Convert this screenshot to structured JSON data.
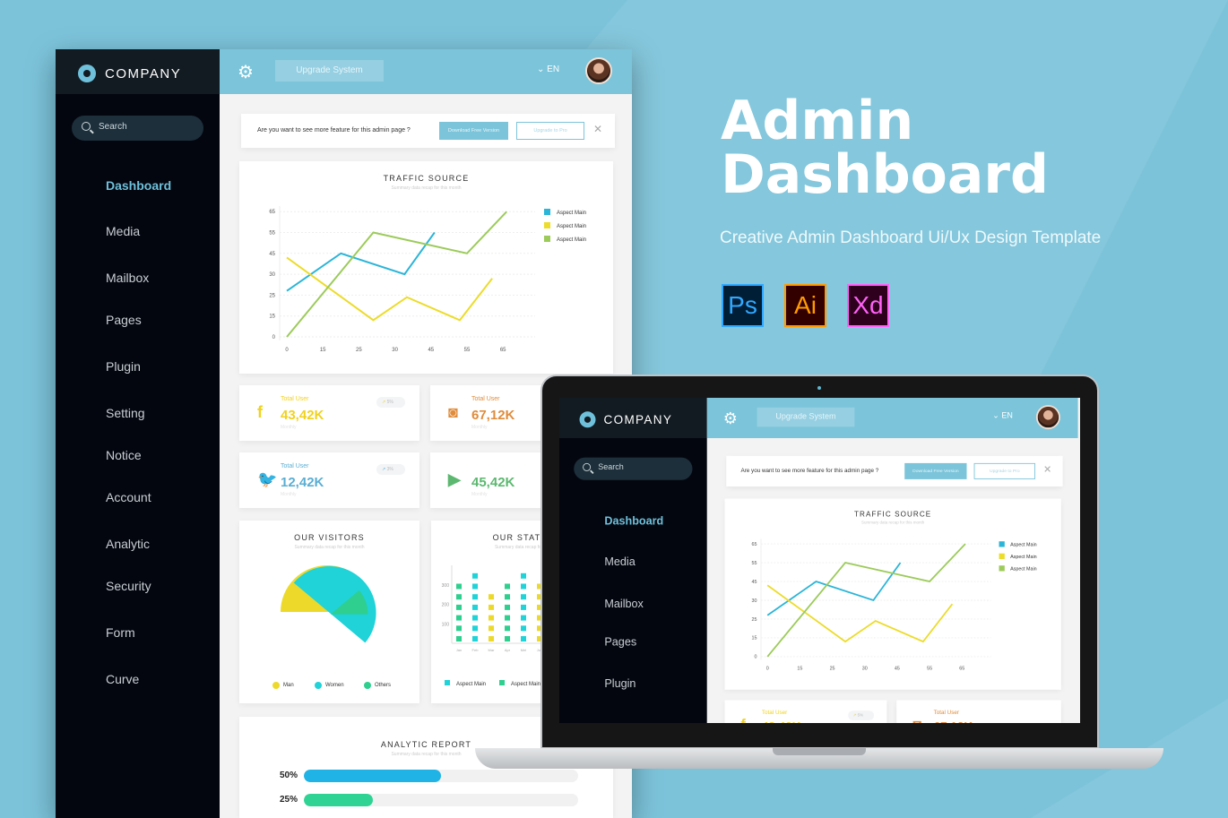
{
  "sidebar": {
    "brand": "COMPANY",
    "search_placeholder": "Search",
    "items": [
      "Dashboard",
      "Media",
      "Mailbox",
      "Pages",
      "Plugin",
      "Setting",
      "Notice",
      "Account",
      "Analytic",
      "Security",
      "Form",
      "Curve"
    ],
    "active": "Dashboard"
  },
  "topbar": {
    "upgrade_label": "Upgrade System",
    "language": "EN"
  },
  "banner": {
    "question": "Are you want to see more feature for this admin page ?",
    "download_label": "Download Free Version",
    "upgrade_label": "Upgrade to Pro"
  },
  "traffic": {
    "title": "TRAFFIC SOURCE",
    "subtitle": "Summary data recap for this month"
  },
  "stats": [
    {
      "icon": "facebook-icon",
      "glyph": "f",
      "label": "Total User",
      "value": "43,42K",
      "period": "Monthly",
      "trend": "5%",
      "color": "#f0d21e"
    },
    {
      "icon": "instagram-icon",
      "glyph": "◙",
      "label": "Total User",
      "value": "67,12K",
      "period": "Monthly",
      "trend": "",
      "color": "#e08c3c"
    },
    {
      "icon": "twitter-icon",
      "glyph": "🐦",
      "label": "Total User",
      "value": "12,42K",
      "period": "Monthly",
      "trend": "3%",
      "color": "#5aaed3"
    },
    {
      "icon": "youtube-icon",
      "glyph": "▶",
      "label": "",
      "value": "45,42K",
      "period": "Monthly",
      "trend": "",
      "color": "#5cb870"
    }
  ],
  "visitors": {
    "title": "OUR VISITORS",
    "subtitle": "Summary data recap for this month"
  },
  "statistic": {
    "title": "OUR STATISTIC",
    "subtitle": "Summary data recap for this month"
  },
  "analytic": {
    "title": "ANALYTIC REPORT",
    "subtitle": "Summary data recap for this month",
    "rows": [
      {
        "label": "50%",
        "value": 50,
        "color": "#1fb3e6"
      },
      {
        "label": "25%",
        "value": 25,
        "color": "#2fd494"
      }
    ]
  },
  "promo": {
    "title_line1": "Admin",
    "title_line2": "Dashboard",
    "tagline": "Creative Admin Dashboard Ui/Ux Design Template",
    "apps": [
      {
        "text": "Ps",
        "fg": "#31a8ff",
        "bg": "#001e36"
      },
      {
        "text": "Ai",
        "fg": "#ff9a00",
        "bg": "#330000"
      },
      {
        "text": "Xd",
        "fg": "#ff61f6",
        "bg": "#2e001e"
      }
    ]
  },
  "chart_data": [
    {
      "type": "line",
      "title": "TRAFFIC SOURCE",
      "x_ticks": [
        0,
        15,
        25,
        30,
        45,
        55,
        65
      ],
      "y_ticks": [
        0,
        15,
        25,
        30,
        45,
        55,
        65
      ],
      "grid": true,
      "legend": "right",
      "series": [
        {
          "name": "Aspect Main",
          "color": "#2bb5d8",
          "points": [
            [
              0,
              26
            ],
            [
              20,
              45
            ],
            [
              34,
              30
            ],
            [
              46,
              55
            ]
          ]
        },
        {
          "name": "Aspect Main",
          "color": "#ecdc2c",
          "points": [
            [
              0,
              42
            ],
            [
              27,
              12
            ],
            [
              35,
              24
            ],
            [
              53,
              12
            ],
            [
              62,
              29
            ]
          ]
        },
        {
          "name": "Aspect Main",
          "color": "#9ccb5a",
          "points": [
            [
              0,
              0
            ],
            [
              27,
              55
            ],
            [
              55,
              45
            ],
            [
              66,
              65
            ]
          ]
        }
      ]
    },
    {
      "type": "pie",
      "title": "OUR VISITORS",
      "legend": "bottom",
      "slices": [
        {
          "name": "Man",
          "value": 37,
          "color": "#ecd92a"
        },
        {
          "name": "Women",
          "value": 50,
          "color": "#1fd3d8"
        },
        {
          "name": "Others",
          "value": 13,
          "color": "#2fcf8f"
        }
      ]
    },
    {
      "type": "bar",
      "title": "OUR STATISTIC",
      "y_ticks": [
        100,
        200,
        300
      ],
      "categories": [
        "Jan",
        "Feb",
        "Mar",
        "Apr",
        "Mei",
        "Jun"
      ],
      "values": [
        300,
        350,
        250,
        300,
        350,
        300
      ],
      "colors": [
        "#2fcf8f",
        "#1fd3d8",
        "#ecd92a",
        "#2fcf8f",
        "#1fd3d8",
        "#ecd92a"
      ],
      "legend_entries": [
        {
          "name": "Aspect Main",
          "color": "#1fd3d8"
        },
        {
          "name": "Aspect Main",
          "color": "#2fcf8f"
        }
      ]
    }
  ]
}
